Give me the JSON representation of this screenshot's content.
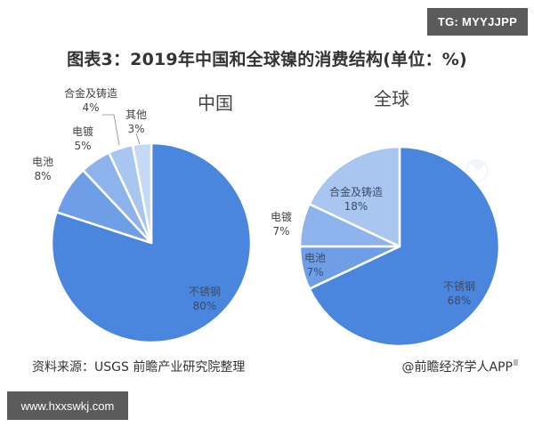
{
  "badges": {
    "top_right": "TG: MYYJJPP",
    "bottom_left": "www.hxxswkj.com"
  },
  "title": "图表3：2019年中国和全球镍的消费结构(单位：%)",
  "footer": {
    "source": "资料来源：USGS 前瞻产业研究院整理",
    "credit": "@前瞻经济学人APP"
  },
  "colors": {
    "stainless": "#4a86de",
    "battery": "#6e9fe6",
    "plating": "#8db3ec",
    "alloy": "#a9c6f1",
    "other": "#c4d9f6",
    "separator": "#ffffff"
  },
  "pies": {
    "china": {
      "title": "中国",
      "labels": {
        "stainless": {
          "name": "不锈钢",
          "value": "80%"
        },
        "battery": {
          "name": "电池",
          "value": "8%"
        },
        "plating": {
          "name": "电镀",
          "value": "5%"
        },
        "alloy": {
          "name": "合金及铸造",
          "value": "4%"
        },
        "other": {
          "name": "其他",
          "value": "3%"
        }
      }
    },
    "global": {
      "title": "全球",
      "labels": {
        "stainless": {
          "name": "不锈钢",
          "value": "68%"
        },
        "battery": {
          "name": "电池",
          "value": "7%"
        },
        "plating": {
          "name": "电镀",
          "value": "7%"
        },
        "alloy": {
          "name": "合金及铸造",
          "value": "18%"
        }
      }
    }
  },
  "chart_data": [
    {
      "type": "pie",
      "title": "中国",
      "categories": [
        "不锈钢",
        "电池",
        "电镀",
        "合金及铸造",
        "其他"
      ],
      "values": [
        80,
        8,
        5,
        4,
        3
      ],
      "unit": "%"
    },
    {
      "type": "pie",
      "title": "全球",
      "categories": [
        "不锈钢",
        "电池",
        "电镀",
        "合金及铸造"
      ],
      "values": [
        68,
        7,
        7,
        18
      ],
      "unit": "%"
    }
  ]
}
